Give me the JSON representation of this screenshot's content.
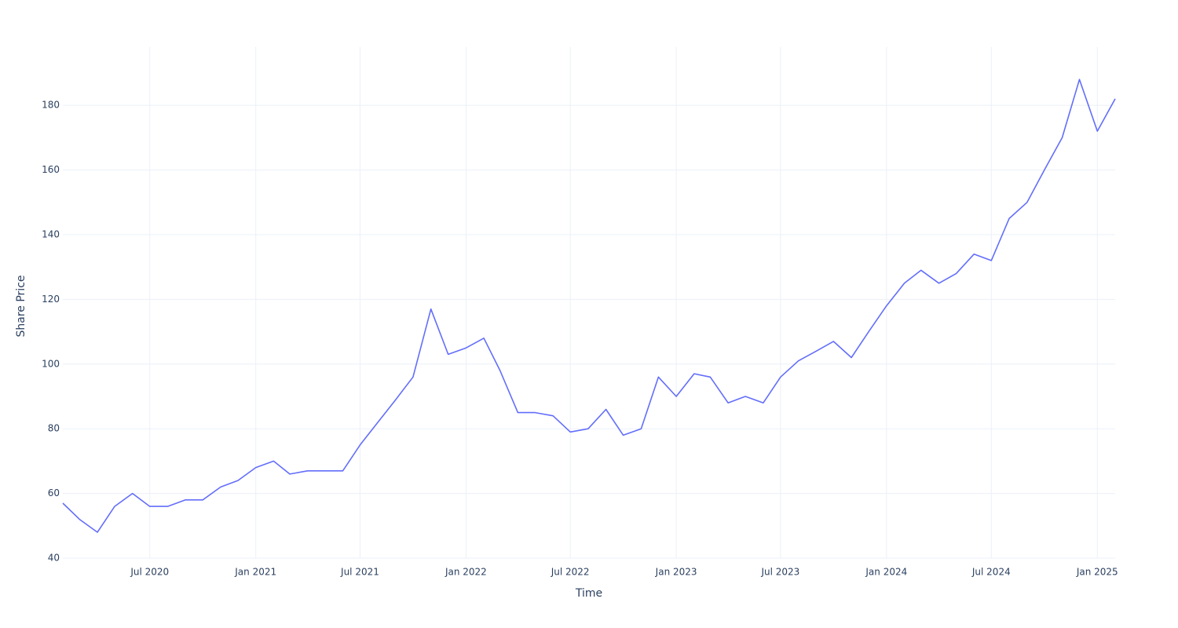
{
  "chart_data": {
    "type": "line",
    "xlabel": "Time",
    "ylabel": "Share Price",
    "x": [
      "2020-02",
      "2020-03",
      "2020-04",
      "2020-05",
      "2020-06",
      "2020-07",
      "2020-08",
      "2020-09",
      "2020-10",
      "2020-11",
      "2020-12",
      "2021-01",
      "2021-02",
      "2021-03",
      "2021-04",
      "2021-05",
      "2021-06",
      "2021-07",
      "2021-08",
      "2021-09",
      "2021-10",
      "2021-11",
      "2021-12",
      "2022-01",
      "2022-02",
      "2022-03",
      "2022-04",
      "2022-05",
      "2022-06",
      "2022-07",
      "2022-08",
      "2022-09",
      "2022-10",
      "2022-11",
      "2022-12",
      "2023-01",
      "2023-02",
      "2023-03",
      "2023-04",
      "2023-05",
      "2023-06",
      "2023-07",
      "2023-08",
      "2023-09",
      "2023-10",
      "2023-11",
      "2023-12",
      "2024-01",
      "2024-02",
      "2024-03",
      "2024-04",
      "2024-05",
      "2024-06",
      "2024-07",
      "2024-08",
      "2024-09",
      "2024-10",
      "2024-11",
      "2024-12",
      "2025-01",
      "2025-02"
    ],
    "series": [
      {
        "color": "#636efa",
        "values": [
          57,
          52,
          48,
          56,
          60,
          56,
          56,
          58,
          58,
          62,
          64,
          68,
          70,
          66,
          67,
          67,
          67,
          75,
          82,
          89,
          96,
          117,
          103,
          105,
          108,
          98,
          85,
          85,
          84,
          79,
          80,
          86,
          78,
          80,
          96,
          90,
          97,
          96,
          88,
          90,
          88,
          96,
          101,
          104,
          107,
          102,
          110,
          118,
          125,
          129,
          125,
          128,
          134,
          132,
          145,
          150,
          160,
          170,
          188,
          172,
          182
        ]
      }
    ],
    "xlim": [
      "2020-02",
      "2025-02"
    ],
    "xticks": [
      {
        "value": "2020-07",
        "label": "Jul 2020"
      },
      {
        "value": "2021-01",
        "label": "Jan 2021"
      },
      {
        "value": "2021-07",
        "label": "Jul 2021"
      },
      {
        "value": "2022-01",
        "label": "Jan 2022"
      },
      {
        "value": "2022-07",
        "label": "Jul 2022"
      },
      {
        "value": "2023-01",
        "label": "Jan 2023"
      },
      {
        "value": "2023-07",
        "label": "Jul 2023"
      },
      {
        "value": "2024-01",
        "label": "Jan 2024"
      },
      {
        "value": "2024-07",
        "label": "Jul 2024"
      },
      {
        "value": "2025-01",
        "label": "Jan 2025"
      }
    ],
    "ylim": [
      40,
      198
    ],
    "yticks": [
      40,
      60,
      80,
      100,
      120,
      140,
      160,
      180
    ],
    "grid": true
  }
}
